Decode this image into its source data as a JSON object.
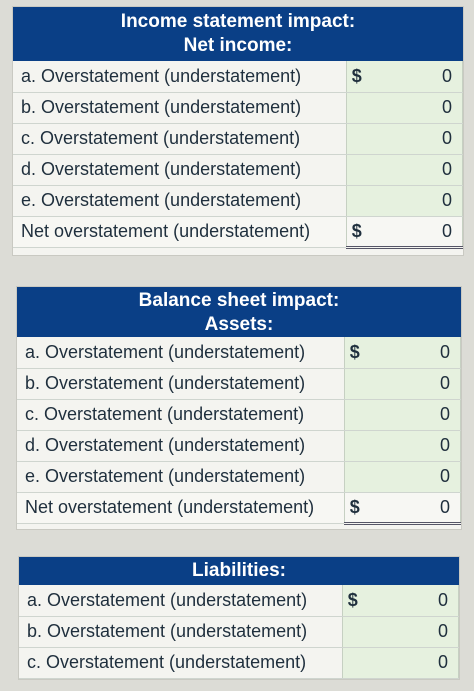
{
  "income": {
    "header_line1": "Income statement impact:",
    "header_line2": "Net income:",
    "rows": [
      {
        "label": "a. Overstatement (understatement)",
        "dollar": "$",
        "value": "0"
      },
      {
        "label": "b. Overstatement (understatement)",
        "dollar": "",
        "value": "0"
      },
      {
        "label": "c. Overstatement (understatement)",
        "dollar": "",
        "value": "0"
      },
      {
        "label": "d. Overstatement (understatement)",
        "dollar": "",
        "value": "0"
      },
      {
        "label": "e. Overstatement (understatement)",
        "dollar": "",
        "value": "0"
      }
    ],
    "net": {
      "label": "Net overstatement (understatement)",
      "dollar": "$",
      "value": "0"
    }
  },
  "balance": {
    "header_line1": "Balance sheet impact:",
    "header_line2": "Assets:",
    "rows": [
      {
        "label": "a. Overstatement (understatement)",
        "dollar": "$",
        "value": "0"
      },
      {
        "label": "b. Overstatement (understatement)",
        "dollar": "",
        "value": "0"
      },
      {
        "label": "c. Overstatement (understatement)",
        "dollar": "",
        "value": "0"
      },
      {
        "label": "d. Overstatement (understatement)",
        "dollar": "",
        "value": "0"
      },
      {
        "label": "e. Overstatement (understatement)",
        "dollar": "",
        "value": "0"
      }
    ],
    "net": {
      "label": "Net overstatement (understatement)",
      "dollar": "$",
      "value": "0"
    }
  },
  "liabilities": {
    "header": "Liabilities:",
    "rows": [
      {
        "label": "a. Overstatement (understatement)",
        "dollar": "$",
        "value": "0"
      },
      {
        "label": "b. Overstatement (understatement)",
        "dollar": "",
        "value": "0"
      },
      {
        "label": "c. Overstatement (understatement)",
        "dollar": "",
        "value": "0"
      }
    ]
  },
  "colors": {
    "header_blue": "#0a3f86",
    "input_green": "#e6f1df"
  }
}
